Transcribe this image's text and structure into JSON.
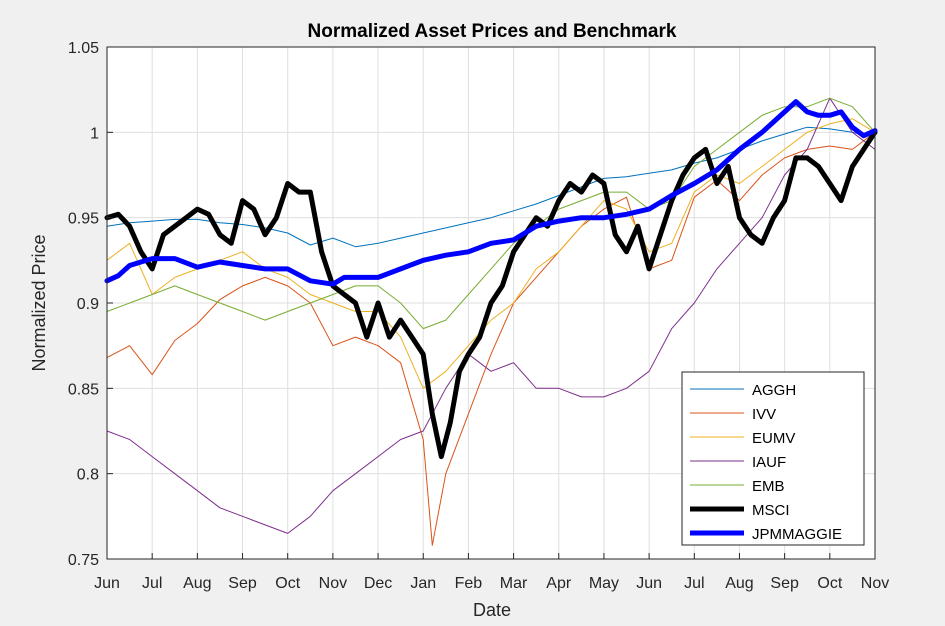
{
  "chart_data": {
    "type": "line",
    "title": "Normalized Asset Prices and Benchmark",
    "xlabel": "Date",
    "ylabel": "Normalized Price",
    "xlim": [
      "Jun",
      "Nov"
    ],
    "ylim": [
      0.75,
      1.05
    ],
    "x_tick_labels": [
      "Jun",
      "Jul",
      "Aug",
      "Sep",
      "Oct",
      "Nov",
      "Dec",
      "Jan",
      "Feb",
      "Mar",
      "Apr",
      "May",
      "Jun",
      "Jul",
      "Aug",
      "Sep",
      "Oct",
      "Nov"
    ],
    "y_ticks": [
      0.75,
      0.8,
      0.85,
      0.9,
      0.95,
      1,
      1.05
    ],
    "y_tick_labels": [
      "0.75",
      "0.8",
      "0.85",
      "0.9",
      "0.95",
      "1",
      "1.05"
    ],
    "grid": true,
    "legend_position": "bottom-right",
    "series": [
      {
        "name": "AGGH",
        "color": "#0072bd",
        "weight": "thin",
        "x": [
          0,
          0.5,
          1,
          1.5,
          2,
          2.5,
          3,
          3.5,
          4,
          4.5,
          5,
          5.5,
          6,
          6.5,
          7,
          7.5,
          8,
          8.5,
          9,
          9.5,
          10,
          10.5,
          11,
          11.5,
          12,
          12.5,
          13,
          13.5,
          14,
          14.5,
          15,
          15.5,
          16,
          16.5,
          17
        ],
        "values": [
          0.945,
          0.947,
          0.948,
          0.949,
          0.949,
          0.947,
          0.946,
          0.944,
          0.941,
          0.934,
          0.938,
          0.933,
          0.935,
          0.938,
          0.941,
          0.944,
          0.947,
          0.95,
          0.954,
          0.958,
          0.963,
          0.968,
          0.973,
          0.974,
          0.976,
          0.978,
          0.982,
          0.985,
          0.99,
          0.995,
          0.999,
          1.003,
          1.002,
          1.0,
          0.997
        ]
      },
      {
        "name": "IVV",
        "color": "#d95319",
        "weight": "thin",
        "x": [
          0,
          0.5,
          1,
          1.5,
          2,
          2.5,
          3,
          3.5,
          4,
          4.5,
          5,
          5.5,
          6,
          6.5,
          7,
          7.2,
          7.5,
          8,
          8.5,
          9,
          9.5,
          10,
          10.5,
          11,
          11.5,
          12,
          12.5,
          13,
          13.5,
          14,
          14.5,
          15,
          15.5,
          16,
          16.5,
          17
        ],
        "values": [
          0.868,
          0.875,
          0.858,
          0.878,
          0.888,
          0.902,
          0.91,
          0.915,
          0.91,
          0.9,
          0.875,
          0.88,
          0.875,
          0.865,
          0.82,
          0.758,
          0.8,
          0.835,
          0.87,
          0.9,
          0.915,
          0.93,
          0.945,
          0.955,
          0.962,
          0.92,
          0.925,
          0.962,
          0.972,
          0.96,
          0.975,
          0.985,
          0.99,
          0.992,
          0.99,
          1.0
        ]
      },
      {
        "name": "EUMV",
        "color": "#edb120",
        "weight": "thin",
        "x": [
          0,
          0.5,
          1,
          1.5,
          2,
          2.5,
          3,
          3.5,
          4,
          4.5,
          5,
          5.5,
          6,
          6.5,
          7,
          7.5,
          8,
          8.5,
          9,
          9.5,
          10,
          10.5,
          11,
          11.5,
          12,
          12.5,
          13,
          13.5,
          14,
          14.5,
          15,
          15.5,
          16,
          16.5,
          17
        ],
        "values": [
          0.925,
          0.935,
          0.905,
          0.915,
          0.92,
          0.925,
          0.93,
          0.92,
          0.915,
          0.905,
          0.9,
          0.895,
          0.895,
          0.88,
          0.85,
          0.86,
          0.875,
          0.89,
          0.9,
          0.92,
          0.93,
          0.945,
          0.96,
          0.955,
          0.93,
          0.935,
          0.965,
          0.975,
          0.97,
          0.98,
          0.99,
          1.0,
          1.005,
          1.008,
          1.0
        ]
      },
      {
        "name": "IAUF",
        "color": "#7e2f8e",
        "weight": "thin",
        "x": [
          0,
          0.5,
          1,
          1.5,
          2,
          2.5,
          3,
          3.5,
          4,
          4.5,
          5,
          5.5,
          6,
          6.5,
          7,
          7.5,
          8,
          8.5,
          9,
          9.5,
          10,
          10.5,
          11,
          11.5,
          12,
          12.5,
          13,
          13.5,
          14,
          14.5,
          15,
          15.5,
          16,
          16.5,
          17
        ],
        "values": [
          0.825,
          0.82,
          0.81,
          0.8,
          0.79,
          0.78,
          0.775,
          0.77,
          0.765,
          0.775,
          0.79,
          0.8,
          0.81,
          0.82,
          0.825,
          0.85,
          0.87,
          0.86,
          0.865,
          0.85,
          0.85,
          0.845,
          0.845,
          0.85,
          0.86,
          0.885,
          0.9,
          0.92,
          0.935,
          0.95,
          0.975,
          0.99,
          1.02,
          1.0,
          0.99
        ]
      },
      {
        "name": "EMB",
        "color": "#77ac30",
        "weight": "thin",
        "x": [
          0,
          0.5,
          1,
          1.5,
          2,
          2.5,
          3,
          3.5,
          4,
          4.5,
          5,
          5.5,
          6,
          6.5,
          7,
          7.5,
          8,
          8.5,
          9,
          9.5,
          10,
          10.5,
          11,
          11.5,
          12,
          12.5,
          13,
          13.5,
          14,
          14.5,
          15,
          15.5,
          16,
          16.5,
          17
        ],
        "values": [
          0.895,
          0.9,
          0.905,
          0.91,
          0.905,
          0.9,
          0.895,
          0.89,
          0.895,
          0.9,
          0.905,
          0.91,
          0.91,
          0.9,
          0.885,
          0.89,
          0.905,
          0.92,
          0.935,
          0.945,
          0.955,
          0.96,
          0.965,
          0.965,
          0.955,
          0.96,
          0.98,
          0.99,
          1.0,
          1.01,
          1.015,
          1.015,
          1.02,
          1.015,
          1.0
        ]
      },
      {
        "name": "MSCI",
        "color": "#000000",
        "weight": "thick",
        "x": [
          0,
          0.25,
          0.5,
          0.75,
          1,
          1.25,
          1.5,
          1.75,
          2,
          2.25,
          2.5,
          2.75,
          3,
          3.25,
          3.5,
          3.75,
          4,
          4.25,
          4.5,
          4.75,
          5,
          5.25,
          5.5,
          5.75,
          6,
          6.25,
          6.5,
          6.75,
          7,
          7.2,
          7.4,
          7.6,
          7.8,
          8,
          8.25,
          8.5,
          8.75,
          9,
          9.25,
          9.5,
          9.75,
          10,
          10.25,
          10.5,
          10.75,
          11,
          11.25,
          11.5,
          11.75,
          12,
          12.25,
          12.5,
          12.75,
          13,
          13.25,
          13.5,
          13.75,
          14,
          14.25,
          14.5,
          14.75,
          15,
          15.25,
          15.5,
          15.75,
          16,
          16.25,
          16.5,
          16.75,
          17
        ],
        "values": [
          0.95,
          0.952,
          0.945,
          0.93,
          0.92,
          0.94,
          0.945,
          0.95,
          0.955,
          0.952,
          0.94,
          0.935,
          0.96,
          0.955,
          0.94,
          0.95,
          0.97,
          0.965,
          0.965,
          0.93,
          0.91,
          0.905,
          0.9,
          0.88,
          0.9,
          0.88,
          0.89,
          0.88,
          0.87,
          0.835,
          0.81,
          0.83,
          0.86,
          0.87,
          0.88,
          0.9,
          0.91,
          0.93,
          0.94,
          0.95,
          0.945,
          0.96,
          0.97,
          0.965,
          0.975,
          0.97,
          0.94,
          0.93,
          0.945,
          0.92,
          0.94,
          0.96,
          0.975,
          0.985,
          0.99,
          0.97,
          0.98,
          0.95,
          0.94,
          0.935,
          0.95,
          0.96,
          0.985,
          0.985,
          0.98,
          0.97,
          0.96,
          0.98,
          0.99,
          1.0
        ]
      },
      {
        "name": "JPMMAGGIE",
        "color": "#0000ff",
        "weight": "thick",
        "x": [
          0,
          0.25,
          0.5,
          0.75,
          1,
          1.5,
          2,
          2.5,
          3,
          3.5,
          4,
          4.5,
          5,
          5.25,
          5.5,
          6,
          6.5,
          7,
          7.5,
          8,
          8.5,
          9,
          9.5,
          10,
          10.5,
          11,
          11.5,
          12,
          12.5,
          13,
          13.5,
          14,
          14.5,
          15,
          15.25,
          15.5,
          15.75,
          16,
          16.25,
          16.5,
          16.75,
          17
        ],
        "values": [
          0.913,
          0.916,
          0.922,
          0.924,
          0.926,
          0.926,
          0.921,
          0.924,
          0.922,
          0.92,
          0.92,
          0.913,
          0.911,
          0.915,
          0.915,
          0.915,
          0.92,
          0.925,
          0.928,
          0.93,
          0.935,
          0.937,
          0.945,
          0.948,
          0.95,
          0.95,
          0.952,
          0.955,
          0.963,
          0.97,
          0.978,
          0.99,
          1.0,
          1.012,
          1.018,
          1.012,
          1.01,
          1.01,
          1.012,
          1.003,
          0.998,
          1.001
        ]
      }
    ]
  }
}
